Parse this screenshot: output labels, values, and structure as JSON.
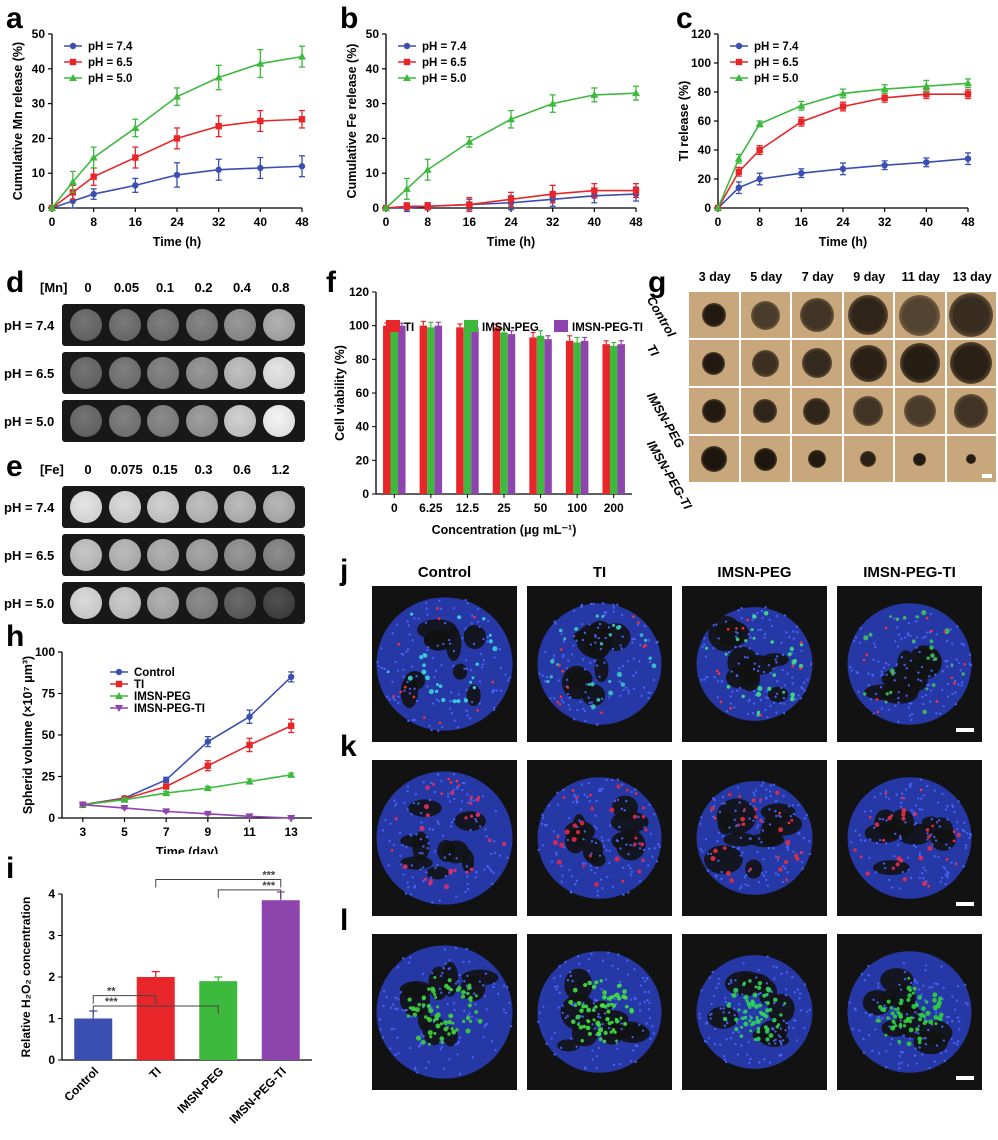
{
  "panels": {
    "a": "a",
    "b": "b",
    "c": "c",
    "d": "d",
    "e": "e",
    "f": "f",
    "g": "g",
    "h": "h",
    "i": "i",
    "j": "j",
    "k": "k",
    "l": "l"
  },
  "colors": {
    "ph74": "#3a4fb0",
    "ph65": "#e8262a",
    "ph50": "#3dba3d",
    "ti": "#e8262a",
    "imsn_peg": "#3dba3d",
    "imsn_peg_ti": "#8e44ad",
    "control": "#3a4fb0"
  },
  "release_charts": [
    {
      "id": "a",
      "type": "line",
      "ylabel": "Cumulative  Mn release (%)",
      "xlabel": "Time (h)",
      "ylim": [
        0,
        50
      ],
      "yticks": [
        0,
        10,
        20,
        30,
        40,
        50
      ],
      "xticks": [
        0,
        8,
        16,
        24,
        32,
        40,
        48
      ],
      "x": [
        0,
        4,
        8,
        16,
        24,
        32,
        40,
        48
      ],
      "series": [
        {
          "name": "pH = 7.4",
          "color": "#3a4fb0",
          "marker": "circle",
          "values": [
            0,
            2,
            4,
            6.5,
            9.5,
            11,
            11.5,
            12
          ],
          "err": [
            0,
            2,
            1.5,
            2,
            3.5,
            3,
            3,
            3
          ]
        },
        {
          "name": "pH = 6.5",
          "color": "#e8262a",
          "marker": "square",
          "values": [
            0,
            4.5,
            9,
            14.5,
            20,
            23.5,
            25,
            25.5
          ],
          "err": [
            0,
            2,
            2.5,
            3,
            3,
            3,
            3,
            2.5
          ]
        },
        {
          "name": "pH = 5.0",
          "color": "#3dba3d",
          "marker": "triangle",
          "values": [
            0,
            7.5,
            14.5,
            23,
            32,
            37.5,
            41.5,
            43.5
          ],
          "err": [
            0,
            3,
            3,
            2.5,
            2.5,
            3.5,
            4,
            3
          ]
        }
      ]
    },
    {
      "id": "b",
      "type": "line",
      "ylabel": "Cumulative  Fe release (%)",
      "xlabel": "Time (h)",
      "ylim": [
        0,
        50
      ],
      "yticks": [
        0,
        10,
        20,
        30,
        40,
        50
      ],
      "xticks": [
        0,
        8,
        16,
        24,
        32,
        40,
        48
      ],
      "x": [
        0,
        4,
        8,
        16,
        24,
        32,
        40,
        48
      ],
      "series": [
        {
          "name": "pH = 7.4",
          "color": "#3a4fb0",
          "marker": "circle",
          "values": [
            0,
            0,
            0.5,
            1,
            1.5,
            2.5,
            3.5,
            4
          ],
          "err": [
            0,
            1,
            1,
            1.5,
            2,
            2,
            2,
            2
          ]
        },
        {
          "name": "pH = 6.5",
          "color": "#e8262a",
          "marker": "square",
          "values": [
            0,
            0.5,
            0.5,
            1,
            2.5,
            4,
            5,
            5
          ],
          "err": [
            0,
            1,
            1,
            2,
            2,
            2.5,
            2,
            2
          ]
        },
        {
          "name": "pH = 5.0",
          "color": "#3dba3d",
          "marker": "triangle",
          "values": [
            0,
            5.5,
            11,
            19,
            25.5,
            30,
            32.5,
            33
          ],
          "err": [
            0,
            3,
            3,
            1.5,
            2.5,
            2.5,
            2,
            2
          ]
        }
      ]
    },
    {
      "id": "c",
      "type": "line",
      "ylabel": "TI release (%)",
      "xlabel": "Time (h)",
      "ylim": [
        0,
        120
      ],
      "yticks": [
        0,
        20,
        40,
        60,
        80,
        100,
        120
      ],
      "xticks": [
        0,
        8,
        16,
        24,
        32,
        40,
        48
      ],
      "x": [
        0,
        4,
        8,
        16,
        24,
        32,
        40,
        48
      ],
      "series": [
        {
          "name": "pH = 7.4",
          "color": "#3a4fb0",
          "marker": "circle",
          "values": [
            0,
            14,
            20,
            24,
            27,
            29.5,
            31.5,
            34
          ],
          "err": [
            0,
            4,
            4,
            3,
            4,
            3,
            3,
            4
          ]
        },
        {
          "name": "pH = 6.5",
          "color": "#e8262a",
          "marker": "square",
          "values": [
            0,
            25,
            40,
            59.5,
            70,
            76,
            78.5,
            78.5
          ],
          "err": [
            0,
            3,
            3,
            3,
            3,
            3,
            3,
            3
          ]
        },
        {
          "name": "pH = 5.0",
          "color": "#3dba3d",
          "marker": "triangle",
          "values": [
            0,
            34,
            58,
            70.5,
            79,
            82,
            84,
            86
          ],
          "err": [
            0,
            3,
            2,
            3,
            3,
            3,
            4,
            3
          ]
        }
      ]
    }
  ],
  "mri_mn": {
    "header_label": "[Mn]",
    "concentrations": [
      "0",
      "0.05",
      "0.1",
      "0.2",
      "0.4",
      "0.8"
    ],
    "rows": [
      {
        "label": "pH = 7.4",
        "gray": [
          0.38,
          0.4,
          0.42,
          0.45,
          0.52,
          0.62
        ]
      },
      {
        "label": "pH = 6.5",
        "gray": [
          0.38,
          0.42,
          0.45,
          0.52,
          0.68,
          0.82
        ]
      },
      {
        "label": "pH = 5.0",
        "gray": [
          0.38,
          0.43,
          0.47,
          0.55,
          0.74,
          0.88
        ]
      }
    ]
  },
  "mri_fe": {
    "header_label": "[Fe]",
    "concentrations": [
      "0",
      "0.075",
      "0.15",
      "0.3",
      "0.6",
      "1.2"
    ],
    "rows": [
      {
        "label": "pH = 7.4",
        "gray": [
          0.82,
          0.78,
          0.74,
          0.68,
          0.66,
          0.64
        ]
      },
      {
        "label": "pH = 6.5",
        "gray": [
          0.7,
          0.66,
          0.62,
          0.58,
          0.52,
          0.48
        ]
      },
      {
        "label": "pH = 5.0",
        "gray": [
          0.78,
          0.72,
          0.62,
          0.48,
          0.34,
          0.24
        ]
      }
    ]
  },
  "viability_chart": {
    "type": "bar",
    "ylabel": "Cell viability (%)",
    "xlabel": "Concentration (μg mL⁻¹)",
    "ylim": [
      0,
      120
    ],
    "yticks": [
      0,
      20,
      40,
      60,
      80,
      100,
      120
    ],
    "categories": [
      "0",
      "6.25",
      "12.5",
      "25",
      "50",
      "100",
      "200"
    ],
    "series": [
      {
        "name": "TI",
        "color": "#e8262a",
        "values": [
          100,
          100,
          99,
          99,
          93,
          91,
          89
        ],
        "err": [
          1.5,
          2.5,
          2,
          2,
          3,
          3,
          2
        ]
      },
      {
        "name": "IMSN-PEG",
        "color": "#3dba3d",
        "values": [
          100,
          99,
          97,
          96,
          94,
          90,
          88
        ],
        "err": [
          1.5,
          3,
          2,
          2,
          3,
          3,
          2
        ]
      },
      {
        "name": "IMSN-PEG-TI",
        "color": "#8e44ad",
        "values": [
          100,
          100,
          99,
          95,
          92,
          91,
          89
        ],
        "err": [
          1.5,
          2,
          2,
          2,
          2,
          2,
          2
        ]
      }
    ]
  },
  "spheroid_images": {
    "days": [
      "3 day",
      "5 day",
      "7 day",
      "9 day",
      "11 day",
      "13 day"
    ],
    "rows": [
      {
        "label": "Control",
        "diam": [
          0.52,
          0.62,
          0.74,
          0.86,
          0.9,
          0.95
        ],
        "dark": [
          0.92,
          0.7,
          0.75,
          0.85,
          0.65,
          0.8
        ]
      },
      {
        "label": "TI",
        "diam": [
          0.5,
          0.58,
          0.66,
          0.8,
          0.86,
          0.92
        ],
        "dark": [
          0.92,
          0.78,
          0.82,
          0.88,
          0.9,
          0.88
        ]
      },
      {
        "label": "IMSN-PEG",
        "diam": [
          0.52,
          0.52,
          0.58,
          0.66,
          0.7,
          0.74
        ],
        "dark": [
          0.92,
          0.85,
          0.85,
          0.75,
          0.7,
          0.75
        ]
      },
      {
        "label": "IMSN-PEG-TI",
        "diam": [
          0.56,
          0.5,
          0.4,
          0.34,
          0.28,
          0.22
        ],
        "dark": [
          0.95,
          0.95,
          0.92,
          0.88,
          0.92,
          0.9
        ]
      }
    ]
  },
  "spheroid_chart": {
    "type": "line",
    "ylabel": "Spherid volume (×10⁷ μm³)",
    "xlabel": "Time (day)",
    "ylim": [
      0,
      100
    ],
    "yticks": [
      0,
      25,
      50,
      75,
      100
    ],
    "x": [
      3,
      5,
      7,
      9,
      11,
      13
    ],
    "series": [
      {
        "name": "Control",
        "color": "#3a4fb0",
        "marker": "circle",
        "values": [
          8,
          12,
          23,
          46,
          61,
          85
        ],
        "err": [
          1,
          1,
          1.5,
          3,
          4,
          3
        ]
      },
      {
        "name": "TI",
        "color": "#e8262a",
        "marker": "square",
        "values": [
          8,
          11.5,
          19,
          31.5,
          44,
          55.5
        ],
        "err": [
          1,
          1,
          1.5,
          3,
          4,
          4
        ]
      },
      {
        "name": "IMSN-PEG",
        "color": "#3dba3d",
        "marker": "triangle",
        "values": [
          8,
          11,
          15,
          18,
          22,
          26
        ],
        "err": [
          1,
          1,
          1,
          1,
          1.5,
          1
        ]
      },
      {
        "name": "IMSN-PEG-TI",
        "color": "#8e44ad",
        "marker": "down-triangle",
        "values": [
          8,
          6,
          4,
          2.5,
          1,
          0
        ],
        "err": [
          0.5,
          0.5,
          0.5,
          0.5,
          0.5,
          0.5
        ]
      }
    ]
  },
  "h2o2_chart": {
    "type": "bar",
    "ylabel": "Relative H₂O₂ concentration",
    "ylim": [
      0,
      4
    ],
    "yticks": [
      0,
      1,
      2,
      3,
      4
    ],
    "categories": [
      "Control",
      "TI",
      "IMSN-PEG",
      "IMSN-PEG-TI"
    ],
    "values": [
      1.0,
      2.0,
      1.9,
      3.85
    ],
    "err": [
      0.18,
      0.13,
      0.1,
      0.2
    ],
    "colors": [
      "#3a4fb0",
      "#e8262a",
      "#3dba3d",
      "#8e44ad"
    ],
    "sig": [
      "**",
      "***",
      "***",
      "***"
    ]
  },
  "confocal": {
    "columns": [
      "Control",
      "TI",
      "IMSN-PEG",
      "IMSN-PEG-TI"
    ],
    "rows": [
      {
        "id": "j",
        "accent": [
          "#35d8e0",
          "#38c9c5",
          "#3fe08a",
          "#40c060"
        ],
        "spots": [
          "#ff3030",
          "#ff3030"
        ]
      },
      {
        "id": "k",
        "accent": [
          "#e0306a",
          "#e02850",
          "#e03040",
          "#e03050"
        ],
        "spots": [
          "#ff3030"
        ]
      },
      {
        "id": "l",
        "accent": [
          "#3fd040",
          "#40e040",
          "#30d060",
          "#30d040"
        ],
        "spots": []
      }
    ]
  }
}
